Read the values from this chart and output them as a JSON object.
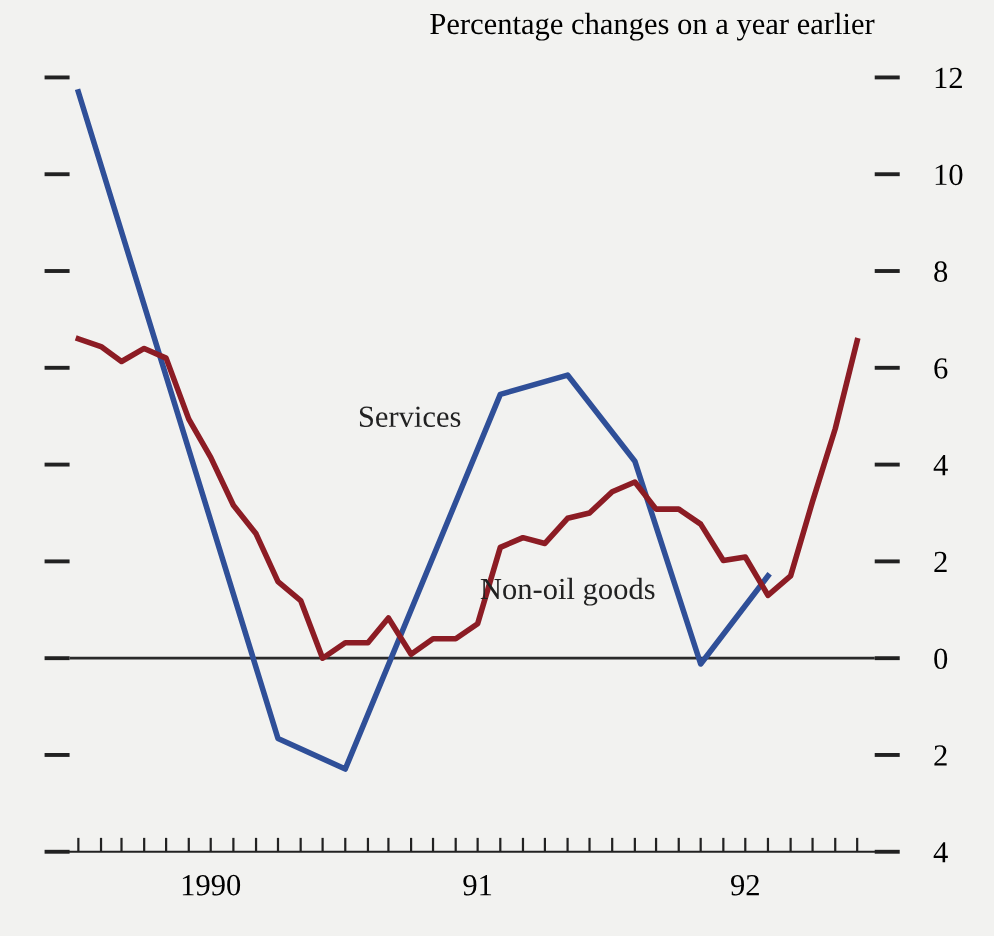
{
  "chart_data": {
    "type": "line",
    "subtitle": "Percentage changes on a year earlier",
    "xlim": [
      "1989-12-20",
      "1992-12-25"
    ],
    "ylim": [
      -4,
      13.6
    ],
    "xticks": [
      {
        "value": "1990-01",
        "label": null
      },
      {
        "value": "1990-02",
        "label": null
      },
      {
        "value": "1990-03",
        "label": null
      },
      {
        "value": "1990-04",
        "label": null
      },
      {
        "value": "1990-05",
        "label": null
      },
      {
        "value": "1990-06",
        "label": null
      },
      {
        "value": "1990-07",
        "label": "1990"
      },
      {
        "value": "1990-08",
        "label": null
      },
      {
        "value": "1990-09",
        "label": null
      },
      {
        "value": "1990-10",
        "label": null
      },
      {
        "value": "1990-11",
        "label": null
      },
      {
        "value": "1990-12",
        "label": null
      },
      {
        "value": "1991-01",
        "label": null
      },
      {
        "value": "1991-02",
        "label": null
      },
      {
        "value": "1991-03",
        "label": null
      },
      {
        "value": "1991-04",
        "label": null
      },
      {
        "value": "1991-05",
        "label": null
      },
      {
        "value": "1991-06",
        "label": null
      },
      {
        "value": "1991-07",
        "label": "91"
      },
      {
        "value": "1991-08",
        "label": null
      },
      {
        "value": "1991-09",
        "label": null
      },
      {
        "value": "1991-10",
        "label": null
      },
      {
        "value": "1991-11",
        "label": null
      },
      {
        "value": "1991-12",
        "label": null
      },
      {
        "value": "1992-01",
        "label": null
      },
      {
        "value": "1992-02",
        "label": null
      },
      {
        "value": "1992-03",
        "label": null
      },
      {
        "value": "1992-04",
        "label": null
      },
      {
        "value": "1992-05",
        "label": null
      },
      {
        "value": "1992-06",
        "label": null
      },
      {
        "value": "1992-07",
        "label": "92"
      },
      {
        "value": "1992-08",
        "label": null
      },
      {
        "value": "1992-09",
        "label": null
      },
      {
        "value": "1992-10",
        "label": null
      },
      {
        "value": "1992-11",
        "label": null
      },
      {
        "value": "1992-12",
        "label": null
      }
    ],
    "yticks": [
      {
        "value": -4,
        "label": "4"
      },
      {
        "value": -2,
        "label": "2"
      },
      0,
      2,
      4,
      6,
      8,
      10,
      12
    ],
    "ref_lines": [
      {
        "axis": "y",
        "value": 0,
        "color": "#2a2a2a"
      }
    ],
    "grid": false,
    "legend": false,
    "marker": "none",
    "line_style": "solid",
    "series": [
      {
        "name": "Services",
        "color": "#2f4f98",
        "x": [
          "1990-01",
          "1990-10",
          "1991-01",
          "1991-08",
          "1991-11",
          "1992-02",
          "1992-05",
          "1992-08"
        ],
        "values": [
          11.7,
          -1.66,
          -2.29,
          5.45,
          5.85,
          4.07,
          -0.12,
          1.7
        ]
      },
      {
        "name": "Non-oil goods",
        "color": "#8c1c24",
        "x": [
          "1990-01",
          "1990-02",
          "1990-03",
          "1990-04",
          "1990-05",
          "1990-06",
          "1990-07",
          "1990-08",
          "1990-09",
          "1990-10",
          "1990-11",
          "1990-12",
          "1991-01",
          "1991-02",
          "1991-03",
          "1991-04",
          "1991-05",
          "1991-06",
          "1991-07",
          "1991-08",
          "1991-09",
          "1991-10",
          "1991-11",
          "1991-12",
          "1992-01",
          "1992-02",
          "1992-03",
          "1992-04",
          "1992-05",
          "1992-06",
          "1992-07",
          "1992-08",
          "1992-09",
          "1992-10",
          "1992-11",
          "1992-12"
        ],
        "values": [
          6.6,
          6.44,
          6.13,
          6.4,
          6.2,
          4.94,
          4.15,
          3.16,
          2.57,
          1.58,
          1.19,
          0.0,
          0.32,
          0.32,
          0.83,
          0.08,
          0.4,
          0.4,
          0.71,
          2.29,
          2.49,
          2.37,
          2.89,
          3.0,
          3.44,
          3.64,
          3.08,
          3.08,
          2.77,
          2.02,
          2.09,
          1.3,
          1.7,
          3.24,
          4.74,
          6.56
        ]
      }
    ]
  }
}
